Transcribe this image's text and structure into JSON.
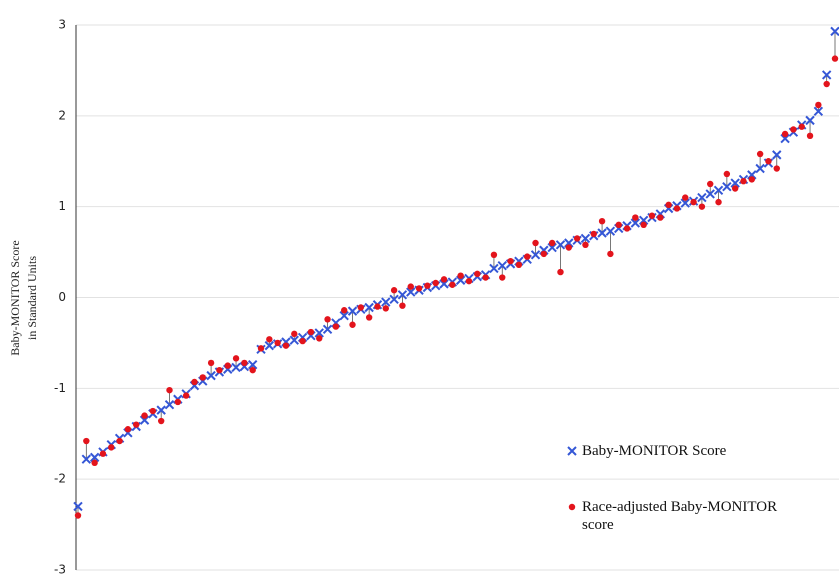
{
  "chart_data": {
    "type": "scatter",
    "ylabel": [
      "Baby-MONITOR Score",
      "in Standard Units"
    ],
    "categories": [
      null,
      null,
      null,
      null,
      null,
      null,
      null,
      null,
      null,
      null,
      null,
      null,
      null,
      null,
      null,
      null,
      null,
      null,
      null,
      null,
      null,
      null,
      null,
      null,
      null,
      null,
      null,
      null,
      null,
      null,
      null,
      null,
      null,
      null,
      null,
      null,
      null,
      null,
      null,
      null,
      null,
      null,
      null,
      null,
      null,
      null,
      null,
      null,
      null,
      null,
      null,
      null,
      null,
      null,
      null,
      null,
      null,
      null,
      null,
      null,
      null,
      null,
      null,
      null,
      null,
      null,
      null,
      null,
      null,
      null,
      null,
      null,
      null,
      null,
      null,
      null,
      null,
      null,
      null,
      null,
      null,
      null,
      null,
      null,
      null,
      null,
      null,
      null,
      null,
      null,
      null,
      null
    ],
    "series": [
      {
        "name": "Baby-MONITOR Score",
        "color": "#3557d6",
        "marker": "x",
        "values": [
          -2.3,
          -1.78,
          -1.76,
          -1.7,
          -1.62,
          -1.55,
          -1.49,
          -1.42,
          -1.35,
          -1.28,
          -1.24,
          -1.18,
          -1.12,
          -1.06,
          -0.97,
          -0.92,
          -0.86,
          -0.82,
          -0.79,
          -0.77,
          -0.76,
          -0.74,
          -0.57,
          -0.53,
          -0.51,
          -0.49,
          -0.47,
          -0.44,
          -0.42,
          -0.39,
          -0.35,
          -0.28,
          -0.2,
          -0.15,
          -0.13,
          -0.11,
          -0.08,
          -0.05,
          -0.02,
          0.03,
          0.06,
          0.08,
          0.11,
          0.13,
          0.15,
          0.17,
          0.19,
          0.21,
          0.23,
          0.25,
          0.32,
          0.35,
          0.37,
          0.4,
          0.42,
          0.47,
          0.52,
          0.55,
          0.58,
          0.6,
          0.63,
          0.65,
          0.68,
          0.71,
          0.73,
          0.76,
          0.79,
          0.82,
          0.85,
          0.88,
          0.92,
          0.98,
          1.01,
          1.04,
          1.06,
          1.1,
          1.14,
          1.18,
          1.22,
          1.26,
          1.3,
          1.35,
          1.42,
          1.48,
          1.57,
          1.75,
          1.82,
          1.9,
          1.95,
          2.05,
          2.45,
          2.93
        ]
      },
      {
        "name": "Race-adjusted Baby-MONITOR score",
        "color": "#e3141c",
        "marker": "dot",
        "values": [
          -2.4,
          -1.58,
          -1.82,
          -1.72,
          -1.65,
          -1.58,
          -1.45,
          -1.4,
          -1.3,
          -1.25,
          -1.36,
          -1.02,
          -1.15,
          -1.08,
          -0.93,
          -0.88,
          -0.72,
          -0.8,
          -0.75,
          -0.67,
          -0.72,
          -0.8,
          -0.56,
          -0.46,
          -0.5,
          -0.53,
          -0.4,
          -0.48,
          -0.38,
          -0.45,
          -0.24,
          -0.32,
          -0.14,
          -0.3,
          -0.11,
          -0.22,
          -0.1,
          -0.12,
          0.08,
          -0.09,
          0.12,
          0.1,
          0.13,
          0.16,
          0.2,
          0.14,
          0.24,
          0.18,
          0.26,
          0.22,
          0.47,
          0.22,
          0.4,
          0.36,
          0.45,
          0.6,
          0.48,
          0.6,
          0.28,
          0.55,
          0.65,
          0.58,
          0.7,
          0.84,
          0.48,
          0.8,
          0.76,
          0.88,
          0.8,
          0.9,
          0.88,
          1.02,
          0.98,
          1.1,
          1.05,
          1.0,
          1.25,
          1.05,
          1.36,
          1.2,
          1.28,
          1.3,
          1.58,
          1.5,
          1.42,
          1.8,
          1.85,
          1.88,
          1.78,
          2.12,
          2.35,
          2.63
        ]
      }
    ],
    "ylim": [
      -3,
      3
    ],
    "yticks": [
      -3,
      -2,
      -1,
      0,
      1,
      2,
      3
    ],
    "grid": true,
    "connectors": true,
    "legend": "lower right"
  }
}
